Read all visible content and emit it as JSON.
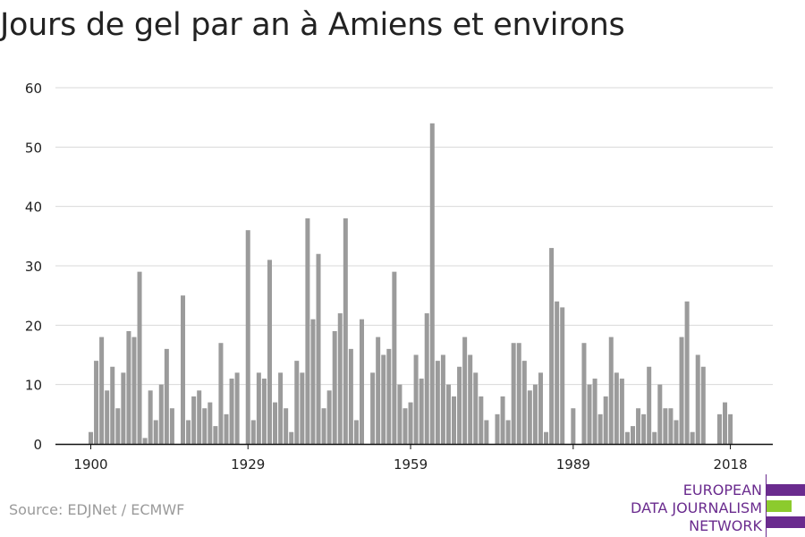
{
  "title": "Jours de gel par an à Amiens et environs",
  "source": "Source: EDJNet / ECMWF",
  "logo": {
    "line1": "EUROPEAN",
    "line2": "DATA JOURNALISM",
    "line3": "NETWORK",
    "colors": [
      "#6a2b8e",
      "#8ccb2d",
      "#6a2b8e"
    ]
  },
  "colors": {
    "bar": "#9b9b9b",
    "grid": "#d9d9d9",
    "axis": "#111111",
    "text": "#222222",
    "source": "#9a9a9a"
  },
  "chart_data": {
    "type": "bar",
    "title": "Jours de gel par an à Amiens et environs",
    "xlabel": "",
    "ylabel": "",
    "ylim": [
      0,
      60
    ],
    "yticks": [
      0,
      10,
      20,
      30,
      40,
      50,
      60
    ],
    "xticks": [
      1900,
      1929,
      1959,
      1989,
      2018
    ],
    "grid": true,
    "legend": "none",
    "x": [
      1900,
      1901,
      1902,
      1903,
      1904,
      1905,
      1906,
      1907,
      1908,
      1909,
      1910,
      1911,
      1912,
      1913,
      1914,
      1915,
      1916,
      1917,
      1918,
      1919,
      1920,
      1921,
      1922,
      1923,
      1924,
      1925,
      1926,
      1927,
      1928,
      1929,
      1930,
      1931,
      1932,
      1933,
      1934,
      1935,
      1936,
      1937,
      1938,
      1939,
      1940,
      1941,
      1942,
      1943,
      1944,
      1945,
      1946,
      1947,
      1948,
      1949,
      1950,
      1951,
      1952,
      1953,
      1954,
      1955,
      1956,
      1957,
      1958,
      1959,
      1960,
      1961,
      1962,
      1963,
      1964,
      1965,
      1966,
      1967,
      1968,
      1969,
      1970,
      1971,
      1972,
      1973,
      1974,
      1975,
      1976,
      1977,
      1978,
      1979,
      1980,
      1981,
      1982,
      1983,
      1984,
      1985,
      1986,
      1987,
      1988,
      1989,
      1990,
      1991,
      1992,
      1993,
      1994,
      1995,
      1996,
      1997,
      1998,
      1999,
      2000,
      2001,
      2002,
      2003,
      2004,
      2005,
      2006,
      2007,
      2008,
      2009,
      2010,
      2011,
      2012,
      2013,
      2014,
      2015,
      2016,
      2017,
      2018
    ],
    "values": [
      2,
      14,
      18,
      9,
      13,
      6,
      12,
      19,
      18,
      29,
      1,
      9,
      4,
      10,
      16,
      6,
      0,
      25,
      4,
      8,
      9,
      6,
      7,
      3,
      17,
      5,
      11,
      12,
      0,
      36,
      4,
      12,
      11,
      31,
      7,
      12,
      6,
      2,
      14,
      12,
      38,
      21,
      32,
      6,
      9,
      19,
      22,
      38,
      16,
      4,
      21,
      0,
      12,
      18,
      15,
      16,
      29,
      10,
      6,
      7,
      15,
      11,
      22,
      54,
      14,
      15,
      10,
      8,
      13,
      18,
      15,
      12,
      8,
      4,
      0,
      5,
      8,
      4,
      17,
      17,
      14,
      9,
      10,
      12,
      2,
      33,
      24,
      23,
      0,
      6,
      0,
      17,
      10,
      11,
      5,
      8,
      18,
      12,
      11,
      2,
      3,
      6,
      5,
      13,
      2,
      10,
      6,
      6,
      4,
      18,
      24,
      2,
      15,
      13,
      0,
      0,
      5,
      7,
      5
    ]
  }
}
